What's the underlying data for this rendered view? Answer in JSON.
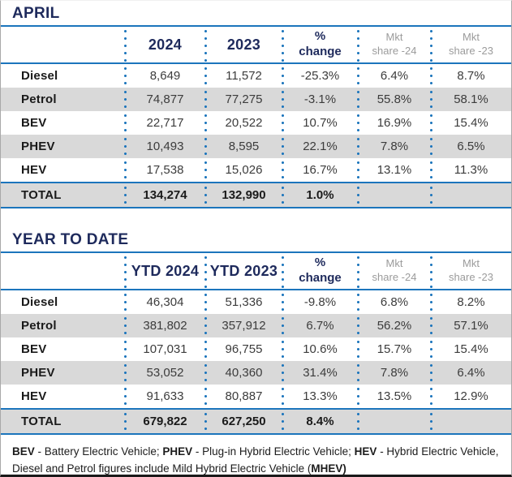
{
  "chart_data": [
    {
      "type": "table",
      "title": "APRIL",
      "columns": [
        "",
        "2024",
        "2023",
        "% change",
        "Mkt share -24",
        "Mkt share -23"
      ],
      "rows": [
        [
          "Diesel",
          "8,649",
          "11,572",
          "-25.3%",
          "6.4%",
          "8.7%"
        ],
        [
          "Petrol",
          "74,877",
          "77,275",
          "-3.1%",
          "55.8%",
          "58.1%"
        ],
        [
          "BEV",
          "22,717",
          "20,522",
          "10.7%",
          "16.9%",
          "15.4%"
        ],
        [
          "PHEV",
          "10,493",
          "8,595",
          "22.1%",
          "7.8%",
          "6.5%"
        ],
        [
          "HEV",
          "17,538",
          "15,026",
          "16.7%",
          "13.1%",
          "11.3%"
        ],
        [
          "TOTAL",
          "134,274",
          "132,990",
          "1.0%",
          "",
          ""
        ]
      ]
    },
    {
      "type": "table",
      "title": "YEAR TO DATE",
      "columns": [
        "",
        "YTD 2024",
        "YTD 2023",
        "% change",
        "Mkt share -24",
        "Mkt share -23"
      ],
      "rows": [
        [
          "Diesel",
          "46,304",
          "51,336",
          "-9.8%",
          "6.8%",
          "8.2%"
        ],
        [
          "Petrol",
          "381,802",
          "357,912",
          "6.7%",
          "56.2%",
          "57.1%"
        ],
        [
          "BEV",
          "107,031",
          "96,755",
          "10.6%",
          "15.7%",
          "15.4%"
        ],
        [
          "PHEV",
          "53,052",
          "40,360",
          "31.4%",
          "7.8%",
          "6.4%"
        ],
        [
          "HEV",
          "91,633",
          "80,887",
          "13.3%",
          "13.5%",
          "12.9%"
        ],
        [
          "TOTAL",
          "679,822",
          "627,250",
          "8.4%",
          "",
          ""
        ]
      ]
    }
  ],
  "header_display": {
    "april_year_a": "2024",
    "april_year_b": "2023",
    "ytd_year_a": "YTD 2024",
    "ytd_year_b": "YTD 2023",
    "pct_line1": "%",
    "pct_line2": "change",
    "mkt_line1": "Mkt",
    "mkt24_line2": "share -24",
    "mkt23_line2": "share -23"
  },
  "footer": {
    "bev": "BEV",
    "bev_def": " - Battery Electric Vehicle; ",
    "phev": "PHEV",
    "phev_def": " - Plug-in Hybrid Electric Vehicle; ",
    "hev": "HEV",
    "hev_def": " - Hybrid Electric Vehicle,",
    "line2_prefix": "Diesel and Petrol figures include Mild Hybrid Electric Vehicle (",
    "mhev": "MHEV)"
  },
  "colors": {
    "navy": "#1e2a5c",
    "blue": "#1c75bc",
    "row_grey": "#d9d9d9",
    "muted_grey": "#9b9b9b",
    "ink": "#1a1a1a",
    "value_grey": "#3c3c3c",
    "page_border": "#a9a9a9",
    "bottom_border": "#1a1a1a"
  }
}
